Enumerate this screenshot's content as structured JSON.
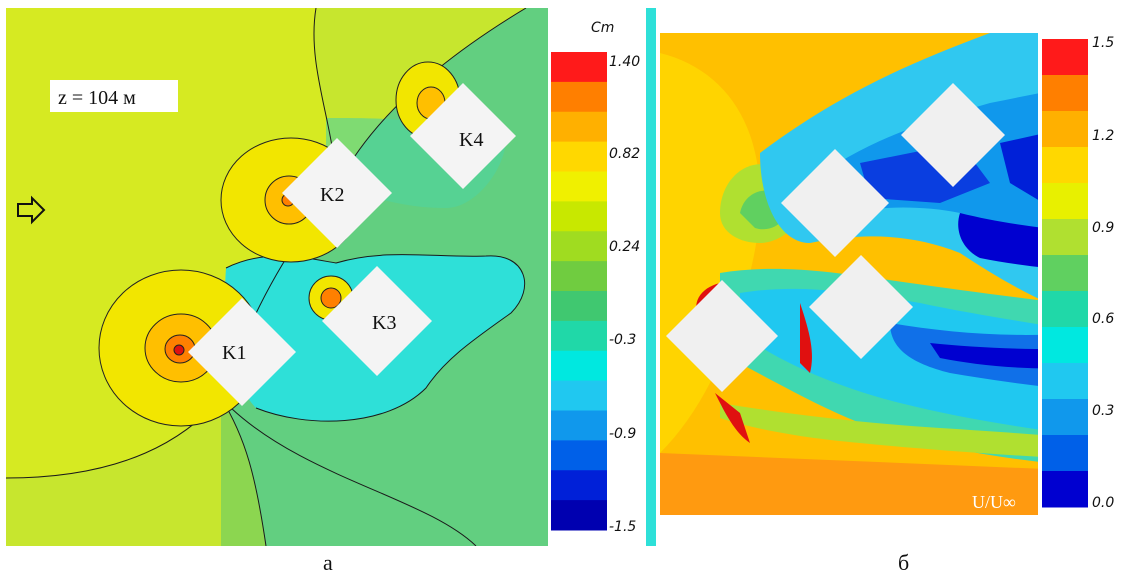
{
  "panel_a": {
    "caption": "а",
    "height_label": "z = 104 м",
    "colorbar": {
      "title": "Cm",
      "ticks": [
        "1.40",
        "0.82",
        "0.24",
        "-0.3",
        "-0.9",
        "-1.5"
      ],
      "colors": [
        "#ff1a1a",
        "#ff7f00",
        "#ffb000",
        "#ffd800",
        "#f0f000",
        "#c8e800",
        "#a0dc20",
        "#70cc40",
        "#40c870",
        "#20d8a8",
        "#00e8e0",
        "#20c8f0",
        "#1098ec",
        "#0060e8",
        "#0020d8",
        "#0000b0"
      ]
    },
    "buildings": [
      "K1",
      "K2",
      "K3",
      "K4"
    ],
    "flow_arrow_icon": "right-arrow-icon"
  },
  "panel_b": {
    "caption": "б",
    "quantity_label": "U/U∞",
    "colorbar": {
      "ticks": [
        "1.5",
        "1.2",
        "0.9",
        "0.6",
        "0.3",
        "0.0"
      ],
      "colors": [
        "#ff1a1a",
        "#ff7f00",
        "#ffb000",
        "#ffd800",
        "#e8f000",
        "#b0e030",
        "#60d060",
        "#20d8a8",
        "#00e8e0",
        "#20c8f0",
        "#1098ec",
        "#0060e8",
        "#0000d0"
      ]
    }
  },
  "labels": {
    "K1": "K1",
    "K2": "K2",
    "K3": "K3",
    "K4": "K4"
  }
}
